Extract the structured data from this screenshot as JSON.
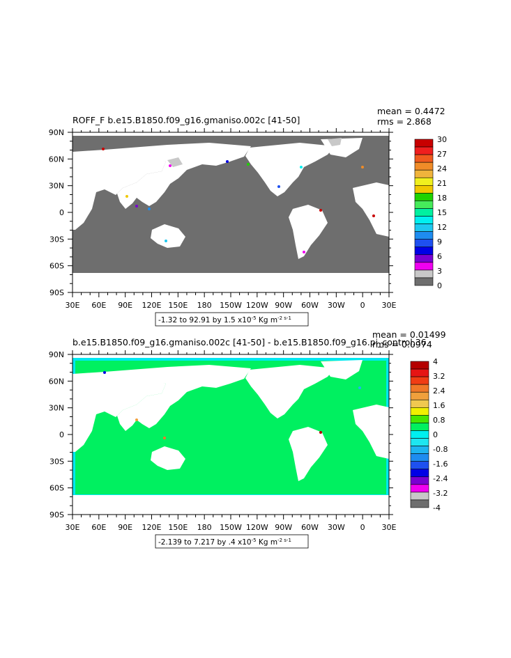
{
  "colors": {
    "land_top": "#6e6e6e",
    "ocean_bottom": "#00f060",
    "ocean_bottom_edge": "#00e8f0"
  },
  "chart_data": [
    {
      "type": "heatmap",
      "title": "ROFF_F b.e15.B1850.f09_g16.gmaniso.002c [41-50]",
      "stats": {
        "mean": "mean = 0.4472",
        "rms": "rms = 2.868"
      },
      "xlabel": "",
      "ylabel": "",
      "x_ticks": [
        "30E",
        "60E",
        "90E",
        "120E",
        "150E",
        "180",
        "150W",
        "120W",
        "90W",
        "60W",
        "30W",
        "0",
        "30E"
      ],
      "y_ticks": [
        "90N",
        "60N",
        "30N",
        "0",
        "30S",
        "60S",
        "90S"
      ],
      "range_label": {
        "text": "-1.32 to 92.91 by 1.5 x10",
        "exp": "-5",
        "units": " Kg m",
        "units_exp": "-2 s-1"
      },
      "colorbar": {
        "labels": [
          "30",
          "27",
          "24",
          "21",
          "18",
          "15",
          "12",
          "9",
          "6",
          "3",
          "0"
        ],
        "colors": [
          "#c80000",
          "#f01e1e",
          "#f05a1e",
          "#f08c28",
          "#f0b43c",
          "#f0f01e",
          "#f0c800",
          "#1ed200",
          "#46eb5a",
          "#00f0a0",
          "#00f0f0",
          "#1ec8f0",
          "#1e8cf0",
          "#1e50f0",
          "#0000e6",
          "#7a00d2",
          "#f000f0",
          "#c8c8c8",
          "#6e6e6e"
        ]
      }
    },
    {
      "type": "heatmap",
      "title": "b.e15.B1850.f09_g16.gmaniso.002c [41-50] - b.e15.B1850.f09_g16.pi_control.36",
      "stats": {
        "mean": "mean = 0.01499",
        "rms": "rms = 0.0974"
      },
      "xlabel": "",
      "ylabel": "",
      "x_ticks": [
        "30E",
        "60E",
        "90E",
        "120E",
        "150E",
        "180",
        "150W",
        "120W",
        "90W",
        "60W",
        "30W",
        "0",
        "30E"
      ],
      "y_ticks": [
        "90N",
        "60N",
        "30N",
        "0",
        "30S",
        "60S",
        "90S"
      ],
      "range_label": {
        "text": "-2.139 to 7.217 by .4 x10",
        "exp": "-5",
        "units": " Kg m",
        "units_exp": "-2 s-1"
      },
      "colorbar": {
        "labels": [
          "4",
          "3.2",
          "2.4",
          "1.6",
          "0.8",
          "0",
          "-0.8",
          "-1.6",
          "-2.4",
          "-3.2",
          "-4"
        ],
        "colors": [
          "#b40000",
          "#e61414",
          "#f03c14",
          "#f07828",
          "#f0a03c",
          "#f0c850",
          "#f0f000",
          "#46e600",
          "#00f060",
          "#00f0f0",
          "#1ee6f0",
          "#1eb4f0",
          "#1e8cf0",
          "#1e50f0",
          "#0000e6",
          "#7a00d2",
          "#f000f0",
          "#c8c8c8",
          "#6e6e6e"
        ]
      }
    }
  ]
}
